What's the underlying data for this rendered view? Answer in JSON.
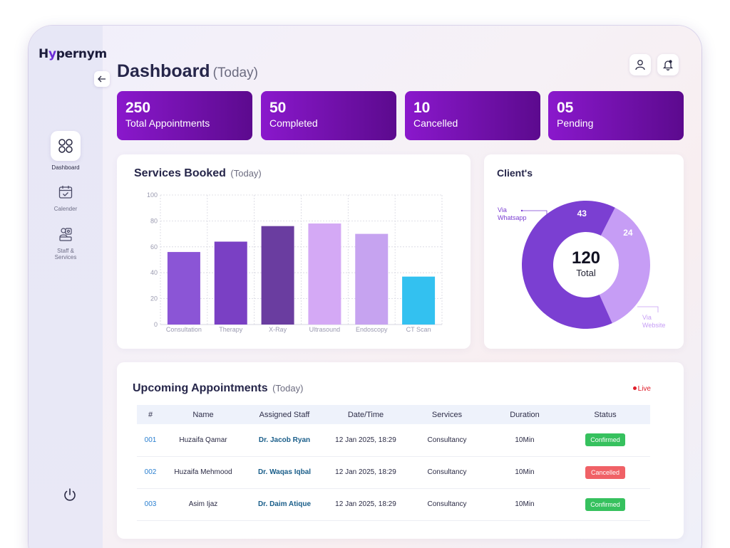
{
  "app": {
    "logo": "Hypernym",
    "logo_initial": "H",
    "logo_mid": "y",
    "logo_rest": "pernym"
  },
  "sidebar": {
    "items": [
      {
        "label": "Dashboard",
        "icon": "grid-icon",
        "active": true
      },
      {
        "label": "Calender",
        "icon": "calendar-check-icon",
        "active": false
      },
      {
        "label": "Staff & Services",
        "icon": "staff-icon",
        "active": false
      }
    ]
  },
  "header": {
    "title": "Dashboard",
    "subtitle": "(Today)"
  },
  "stats": [
    {
      "value": "250",
      "label": "Total Appointments"
    },
    {
      "value": "50",
      "label": "Completed"
    },
    {
      "value": "10",
      "label": "Cancelled"
    },
    {
      "value": "05",
      "label": "Pending"
    }
  ],
  "services_card": {
    "title": "Services Booked",
    "subtitle": "(Today)"
  },
  "chart_data": [
    {
      "type": "bar",
      "categories": [
        "Consultation",
        "Therapy",
        "X-Ray",
        "Ultrasound",
        "Endoscopy",
        "CT Scan"
      ],
      "values": [
        56,
        64,
        76,
        78,
        70,
        37
      ],
      "colors": [
        "#8b55d6",
        "#7a40c4",
        "#6a3da0",
        "#d4a9f5",
        "#c6a3f0",
        "#33c1f0"
      ],
      "yticks": [
        0,
        20,
        40,
        60,
        80,
        100
      ],
      "ylim": [
        0,
        100
      ],
      "grid": true
    },
    {
      "type": "pie",
      "title": "Client's",
      "total": "120",
      "total_label": "Total",
      "slices": [
        {
          "label": "Via Whatsapp",
          "value": 43,
          "color": "#7b3fd2"
        },
        {
          "label": "Via Website",
          "value": 24,
          "color": "#c69df5"
        }
      ]
    }
  ],
  "appointments": {
    "title": "Upcoming Appointments",
    "subtitle": "(Today)",
    "live_label": "Live",
    "columns": [
      "#",
      "Name",
      "Assigned Staff",
      "Date/Time",
      "Services",
      "Duration",
      "Status"
    ],
    "rows": [
      {
        "id": "001",
        "name": "Huzaifa Qamar",
        "staff": "Dr. Jacob Ryan",
        "datetime": "12 Jan 2025, 18:29",
        "service": "Consultancy",
        "duration": "10Min",
        "status": "Confirmed"
      },
      {
        "id": "002",
        "name": "Huzaifa Mehmood",
        "staff": "Dr. Waqas Iqbal",
        "datetime": "12 Jan 2025, 18:29",
        "service": "Consultancy",
        "duration": "10Min",
        "status": "Cancelled"
      },
      {
        "id": "003",
        "name": "Asim Ijaz",
        "staff": "Dr. Daim Atique",
        "datetime": "12 Jan 2025, 18:29",
        "service": "Consultancy",
        "duration": "10Min",
        "status": "Confirmed"
      }
    ]
  },
  "colors": {
    "accent": "#7b1fd0",
    "confirmed": "#36c15e",
    "cancelled": "#f06166",
    "live": "#e01d2a"
  }
}
